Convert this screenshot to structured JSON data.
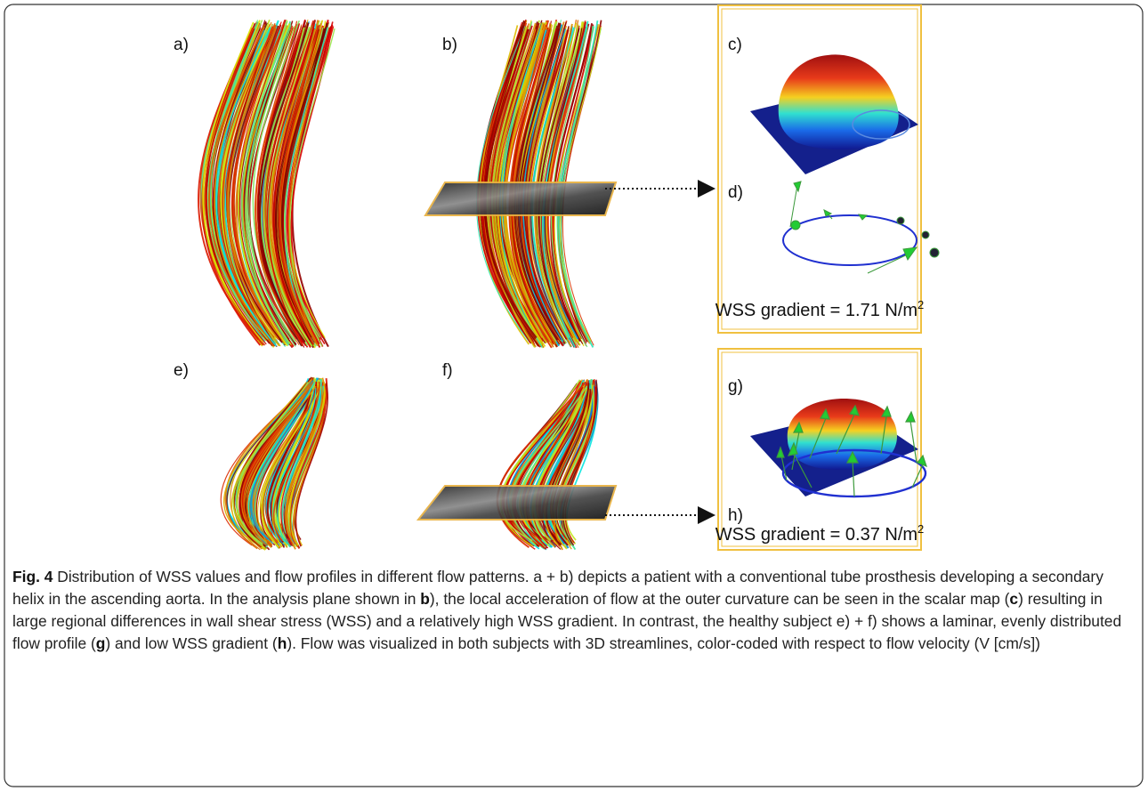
{
  "panel_labels": [
    "a)",
    "b)",
    "c)",
    "d)",
    "e)",
    "f)",
    "g)",
    "h)"
  ],
  "wss": [
    {
      "text": "WSS gradient = 1.71 N/m",
      "sup": "2"
    },
    {
      "text": "WSS gradient = 0.37 N/m",
      "sup": "2"
    }
  ],
  "caption": {
    "label": "Fig. 4",
    "parts": [
      " Distribution of WSS values and flow profiles in different flow patterns. a + b) depicts a patient with a conventional tube prosthesis developing a secondary helix in the ascending aorta. In the analysis plane shown in ",
      "b",
      "), the local acceleration of flow at the outer curvature can be seen in the scalar map (",
      "c",
      ") resulting in large regional differences in wall shear stress (WSS) and a relatively high WSS gradient. In contrast, the healthy subject e) + f) shows a laminar, evenly distributed flow profile (",
      "g",
      ") and low WSS gradient (",
      "h",
      "). Flow was visualized in both subjects with 3D streamlines, color-coded with respect to flow velocity (V [cm/s])"
    ]
  }
}
